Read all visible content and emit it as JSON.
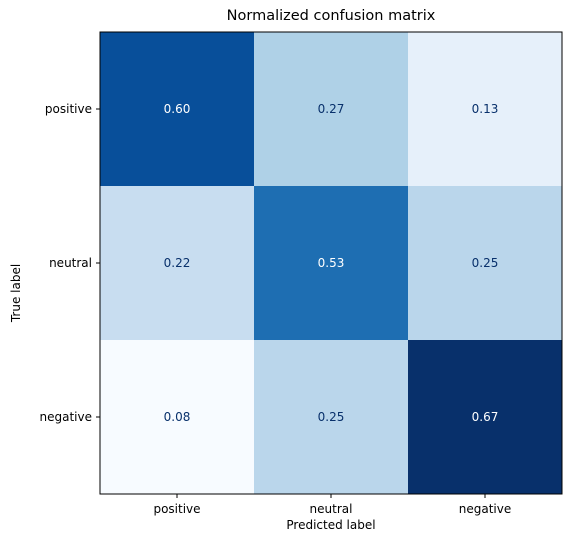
{
  "chart_data": {
    "type": "heatmap",
    "title": "Normalized confusion matrix",
    "xlabel": "Predicted label",
    "ylabel": "True label",
    "x_categories": [
      "positive",
      "neutral",
      "negative"
    ],
    "y_categories": [
      "positive",
      "neutral",
      "negative"
    ],
    "values": [
      [
        0.6,
        0.27,
        0.13
      ],
      [
        0.22,
        0.53,
        0.25
      ],
      [
        0.08,
        0.25,
        0.67
      ]
    ],
    "value_format": "0.00",
    "colormap": "Blues",
    "value_range": [
      0.08,
      0.67
    ],
    "colors": {
      "low": "#f7fbff",
      "high": "#08306b",
      "text_on_light": "#08306b",
      "text_on_dark": "#ffffff"
    }
  }
}
